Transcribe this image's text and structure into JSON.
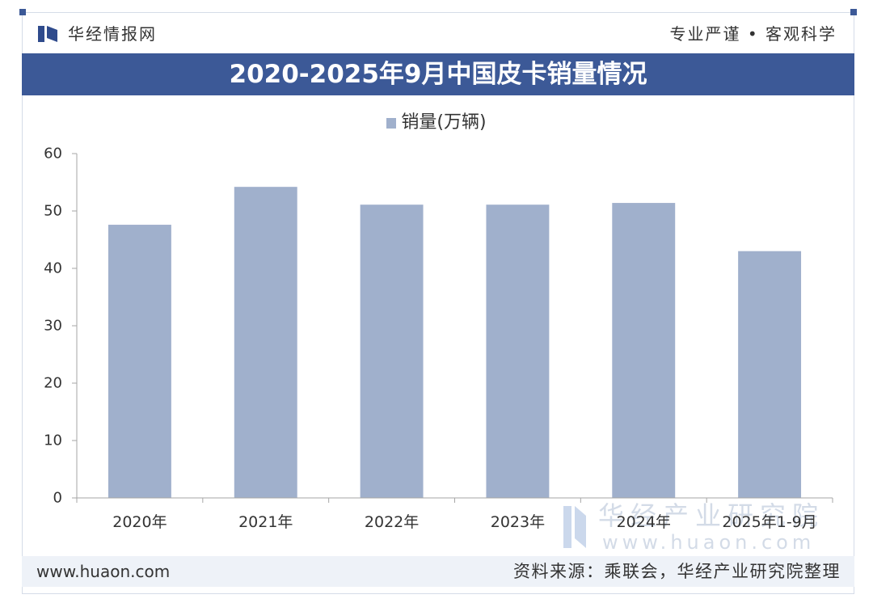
{
  "header": {
    "logo_icon": "huaon-logo-icon",
    "brand": "华经情报网",
    "slogan": "专业严谨 • 客观科学"
  },
  "chart_data": {
    "type": "bar",
    "title": "2020-2025年9月中国皮卡销量情况",
    "categories": [
      "2020年",
      "2021年",
      "2022年",
      "2023年",
      "2024年",
      "2025年1-9月"
    ],
    "series": [
      {
        "name": "销量(万辆)",
        "values": [
          47.6,
          54.2,
          51.1,
          51.1,
          51.4,
          43.0
        ]
      }
    ],
    "xlabel": "",
    "ylabel": "",
    "ylim": [
      0,
      60
    ],
    "yticks": [
      0,
      10,
      20,
      30,
      40,
      50,
      60
    ],
    "grid": false,
    "legend": "top-center"
  },
  "watermark": {
    "logo_icon": "huaon-logo-icon",
    "name": "华经产业研究院",
    "url": "www.huaon.com"
  },
  "footer": {
    "website": "www.huaon.com",
    "source": "资料来源：乘联会，华经产业研究院整理"
  },
  "colors": {
    "brand": "#3c5997",
    "logo": "#2f4b8c",
    "bar": "#a0b0cc",
    "axis": "#a6a6a6",
    "footer_band": "#eef2f8",
    "watermark_logo": "#cbd8ec"
  }
}
